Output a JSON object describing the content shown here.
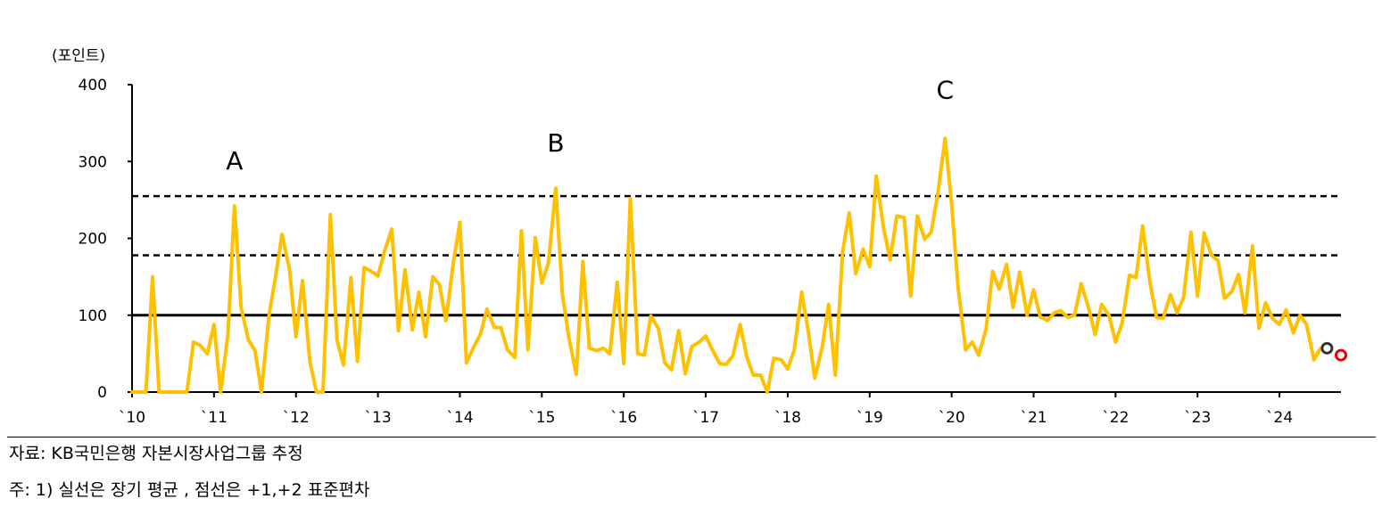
{
  "chart_data": {
    "type": "line",
    "ylabel": "(포인트)",
    "ylim": [
      0,
      400
    ],
    "yticks": [
      0,
      100,
      200,
      300,
      400
    ],
    "xlim": [
      2010,
      2024.75
    ],
    "xticks": [
      {
        "value": 2010,
        "label": "`10"
      },
      {
        "value": 2011,
        "label": "`11"
      },
      {
        "value": 2012,
        "label": "`12"
      },
      {
        "value": 2013,
        "label": "`13"
      },
      {
        "value": 2014,
        "label": "`14"
      },
      {
        "value": 2015,
        "label": "`15"
      },
      {
        "value": 2016,
        "label": "`16"
      },
      {
        "value": 2017,
        "label": "`17"
      },
      {
        "value": 2018,
        "label": "`18"
      },
      {
        "value": 2019,
        "label": "`19"
      },
      {
        "value": 2020,
        "label": "`20"
      },
      {
        "value": 2021,
        "label": "`21"
      },
      {
        "value": 2022,
        "label": "`22"
      },
      {
        "value": 2023,
        "label": "`23"
      },
      {
        "value": 2024,
        "label": "`24"
      }
    ],
    "reference_lines": [
      {
        "value": 100,
        "style": "solid"
      },
      {
        "value": 178,
        "style": "dashed"
      },
      {
        "value": 255,
        "style": "dashed"
      }
    ],
    "annotations": [
      {
        "label": "A",
        "x": 2011.25,
        "y": 290
      },
      {
        "label": "B",
        "x": 2015.17,
        "y": 313
      },
      {
        "label": "C",
        "x": 2019.92,
        "y": 382
      }
    ],
    "markers": [
      {
        "x": 2024.58,
        "y": 57,
        "color": "#333333"
      },
      {
        "x": 2024.75,
        "y": 48,
        "color": "#e60000"
      }
    ],
    "line_color": "#FFC000",
    "series": [
      {
        "values": [
          [
            2010.0,
            0
          ],
          [
            2010.08,
            0
          ],
          [
            2010.17,
            0
          ],
          [
            2010.25,
            150
          ],
          [
            2010.33,
            0
          ],
          [
            2010.42,
            0
          ],
          [
            2010.5,
            0
          ],
          [
            2010.58,
            0
          ],
          [
            2010.67,
            0
          ],
          [
            2010.75,
            65
          ],
          [
            2010.83,
            61
          ],
          [
            2010.92,
            50
          ],
          [
            2011.0,
            88
          ],
          [
            2011.08,
            0
          ],
          [
            2011.17,
            75
          ],
          [
            2011.25,
            242
          ],
          [
            2011.33,
            110
          ],
          [
            2011.42,
            68
          ],
          [
            2011.5,
            54
          ],
          [
            2011.58,
            0
          ],
          [
            2011.67,
            99
          ],
          [
            2011.75,
            150
          ],
          [
            2011.83,
            205
          ],
          [
            2011.92,
            160
          ],
          [
            2012.0,
            72
          ],
          [
            2012.08,
            145
          ],
          [
            2012.17,
            40
          ],
          [
            2012.25,
            0
          ],
          [
            2012.33,
            0
          ],
          [
            2012.42,
            231
          ],
          [
            2012.5,
            68
          ],
          [
            2012.58,
            35
          ],
          [
            2012.67,
            149
          ],
          [
            2012.75,
            40
          ],
          [
            2012.83,
            162
          ],
          [
            2012.92,
            157
          ],
          [
            2013.0,
            151
          ],
          [
            2013.08,
            183
          ],
          [
            2013.17,
            212
          ],
          [
            2013.25,
            80
          ],
          [
            2013.33,
            159
          ],
          [
            2013.42,
            81
          ],
          [
            2013.5,
            130
          ],
          [
            2013.58,
            72
          ],
          [
            2013.67,
            150
          ],
          [
            2013.75,
            140
          ],
          [
            2013.83,
            93
          ],
          [
            2013.92,
            168
          ],
          [
            2014.0,
            221
          ],
          [
            2014.08,
            38
          ],
          [
            2014.17,
            59
          ],
          [
            2014.25,
            75
          ],
          [
            2014.33,
            108
          ],
          [
            2014.42,
            84
          ],
          [
            2014.5,
            84
          ],
          [
            2014.58,
            55
          ],
          [
            2014.67,
            45
          ],
          [
            2014.75,
            210
          ],
          [
            2014.83,
            55
          ],
          [
            2014.92,
            201
          ],
          [
            2015.0,
            142
          ],
          [
            2015.08,
            168
          ],
          [
            2015.17,
            265
          ],
          [
            2015.25,
            128
          ],
          [
            2015.33,
            71
          ],
          [
            2015.42,
            23
          ],
          [
            2015.5,
            170
          ],
          [
            2015.58,
            57
          ],
          [
            2015.67,
            54
          ],
          [
            2015.75,
            57
          ],
          [
            2015.83,
            50
          ],
          [
            2015.92,
            143
          ],
          [
            2016.0,
            37
          ],
          [
            2016.08,
            252
          ],
          [
            2016.17,
            50
          ],
          [
            2016.25,
            48
          ],
          [
            2016.33,
            99
          ],
          [
            2016.42,
            83
          ],
          [
            2016.5,
            38
          ],
          [
            2016.58,
            29
          ],
          [
            2016.67,
            80
          ],
          [
            2016.75,
            24
          ],
          [
            2016.83,
            59
          ],
          [
            2016.92,
            65
          ],
          [
            2017.0,
            73
          ],
          [
            2017.08,
            55
          ],
          [
            2017.17,
            37
          ],
          [
            2017.25,
            36
          ],
          [
            2017.33,
            47
          ],
          [
            2017.42,
            88
          ],
          [
            2017.5,
            46
          ],
          [
            2017.58,
            22
          ],
          [
            2017.67,
            22
          ],
          [
            2017.75,
            0
          ],
          [
            2017.83,
            44
          ],
          [
            2017.92,
            42
          ],
          [
            2018.0,
            30
          ],
          [
            2018.08,
            55
          ],
          [
            2018.17,
            130
          ],
          [
            2018.25,
            80
          ],
          [
            2018.33,
            18
          ],
          [
            2018.42,
            58
          ],
          [
            2018.5,
            114
          ],
          [
            2018.58,
            22
          ],
          [
            2018.67,
            183
          ],
          [
            2018.75,
            233
          ],
          [
            2018.83,
            154
          ],
          [
            2018.92,
            186
          ],
          [
            2019.0,
            163
          ],
          [
            2019.08,
            281
          ],
          [
            2019.17,
            213
          ],
          [
            2019.25,
            172
          ],
          [
            2019.33,
            229
          ],
          [
            2019.42,
            227
          ],
          [
            2019.5,
            125
          ],
          [
            2019.58,
            229
          ],
          [
            2019.67,
            199
          ],
          [
            2019.75,
            208
          ],
          [
            2019.83,
            257
          ],
          [
            2019.92,
            330
          ],
          [
            2020.0,
            245
          ],
          [
            2020.08,
            135
          ],
          [
            2020.17,
            55
          ],
          [
            2020.25,
            65
          ],
          [
            2020.33,
            48
          ],
          [
            2020.42,
            82
          ],
          [
            2020.5,
            157
          ],
          [
            2020.58,
            134
          ],
          [
            2020.67,
            166
          ],
          [
            2020.75,
            110
          ],
          [
            2020.83,
            156
          ],
          [
            2020.92,
            100
          ],
          [
            2021.0,
            133
          ],
          [
            2021.08,
            98
          ],
          [
            2021.17,
            93
          ],
          [
            2021.25,
            103
          ],
          [
            2021.33,
            106
          ],
          [
            2021.42,
            97
          ],
          [
            2021.5,
            100
          ],
          [
            2021.58,
            141
          ],
          [
            2021.67,
            110
          ],
          [
            2021.75,
            75
          ],
          [
            2021.83,
            114
          ],
          [
            2021.92,
            100
          ],
          [
            2022.0,
            65
          ],
          [
            2022.08,
            90
          ],
          [
            2022.17,
            152
          ],
          [
            2022.25,
            149
          ],
          [
            2022.33,
            216
          ],
          [
            2022.42,
            142
          ],
          [
            2022.5,
            97
          ],
          [
            2022.58,
            96
          ],
          [
            2022.67,
            127
          ],
          [
            2022.75,
            103
          ],
          [
            2022.83,
            123
          ],
          [
            2022.92,
            208
          ],
          [
            2023.0,
            125
          ],
          [
            2023.08,
            207
          ],
          [
            2023.17,
            178
          ],
          [
            2023.25,
            171
          ],
          [
            2023.33,
            122
          ],
          [
            2023.42,
            131
          ],
          [
            2023.5,
            153
          ],
          [
            2023.58,
            103
          ],
          [
            2023.67,
            190
          ],
          [
            2023.75,
            83
          ],
          [
            2023.83,
            116
          ],
          [
            2023.92,
            95
          ],
          [
            2024.0,
            88
          ],
          [
            2024.08,
            107
          ],
          [
            2024.17,
            77
          ],
          [
            2024.25,
            100
          ],
          [
            2024.33,
            88
          ],
          [
            2024.42,
            42
          ],
          [
            2024.5,
            57
          ]
        ]
      }
    ]
  },
  "footer": {
    "source": "자료: KB국민은행 자본시장사업그룹 추정",
    "note": "주: 1) 실선은 장기 평균 , 점선은 +1,+2 표준편차"
  }
}
